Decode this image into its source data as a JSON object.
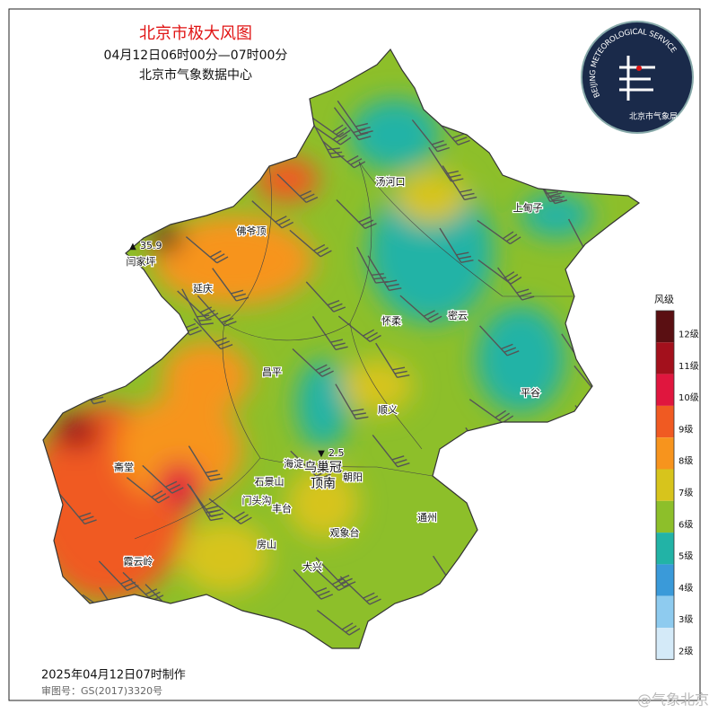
{
  "header": {
    "title": "北京市极大风图",
    "time": "04月12日06时00分—07时00分",
    "source": "北京市气象数据中心"
  },
  "logo": {
    "text": "BEIJING METEOROLOGICAL SERVICE",
    "name": "北京市气象局"
  },
  "places": [
    {
      "label": "汤河口"
    },
    {
      "label": "上甸子"
    },
    {
      "label": "佛爷顶"
    },
    {
      "label": "闫家坪"
    },
    {
      "label": "延庆"
    },
    {
      "label": "怀柔"
    },
    {
      "label": "密云"
    },
    {
      "label": "昌平"
    },
    {
      "label": "平谷"
    },
    {
      "label": "顺义"
    },
    {
      "label": "斋堂"
    },
    {
      "label": "海淀"
    },
    {
      "label": "石景山"
    },
    {
      "label": "乌巢冠"
    },
    {
      "label": "顶南"
    },
    {
      "label": "朝阳"
    },
    {
      "label": "门头沟"
    },
    {
      "label": "丰台"
    },
    {
      "label": "通州"
    },
    {
      "label": "观象台"
    },
    {
      "label": "房山"
    },
    {
      "label": "大兴"
    },
    {
      "label": "霞云岭"
    }
  ],
  "stations": [
    {
      "value": 35.9
    },
    {
      "value": 2.5
    }
  ],
  "legend": {
    "title": "风级",
    "levels": [
      {
        "label": "12级",
        "color": "#5a0f12"
      },
      {
        "label": "11级",
        "color": "#a3101c"
      },
      {
        "label": "10级",
        "color": "#e0163e"
      },
      {
        "label": "9级",
        "color": "#f05a22"
      },
      {
        "label": "8级",
        "color": "#f7941d"
      },
      {
        "label": "7级",
        "color": "#d7c41c"
      },
      {
        "label": "6级",
        "color": "#8dbf2a"
      },
      {
        "label": "5级",
        "color": "#22b3a6"
      },
      {
        "label": "4级",
        "color": "#3a9ad9"
      },
      {
        "label": "3级",
        "color": "#8ecbef"
      },
      {
        "label": "2级",
        "color": "#d4eaf8"
      }
    ]
  },
  "footer": {
    "made": "2025年04月12日07时制作",
    "approval": "审图号：GS(2017)3320号"
  },
  "watermark": "@气象北京"
}
